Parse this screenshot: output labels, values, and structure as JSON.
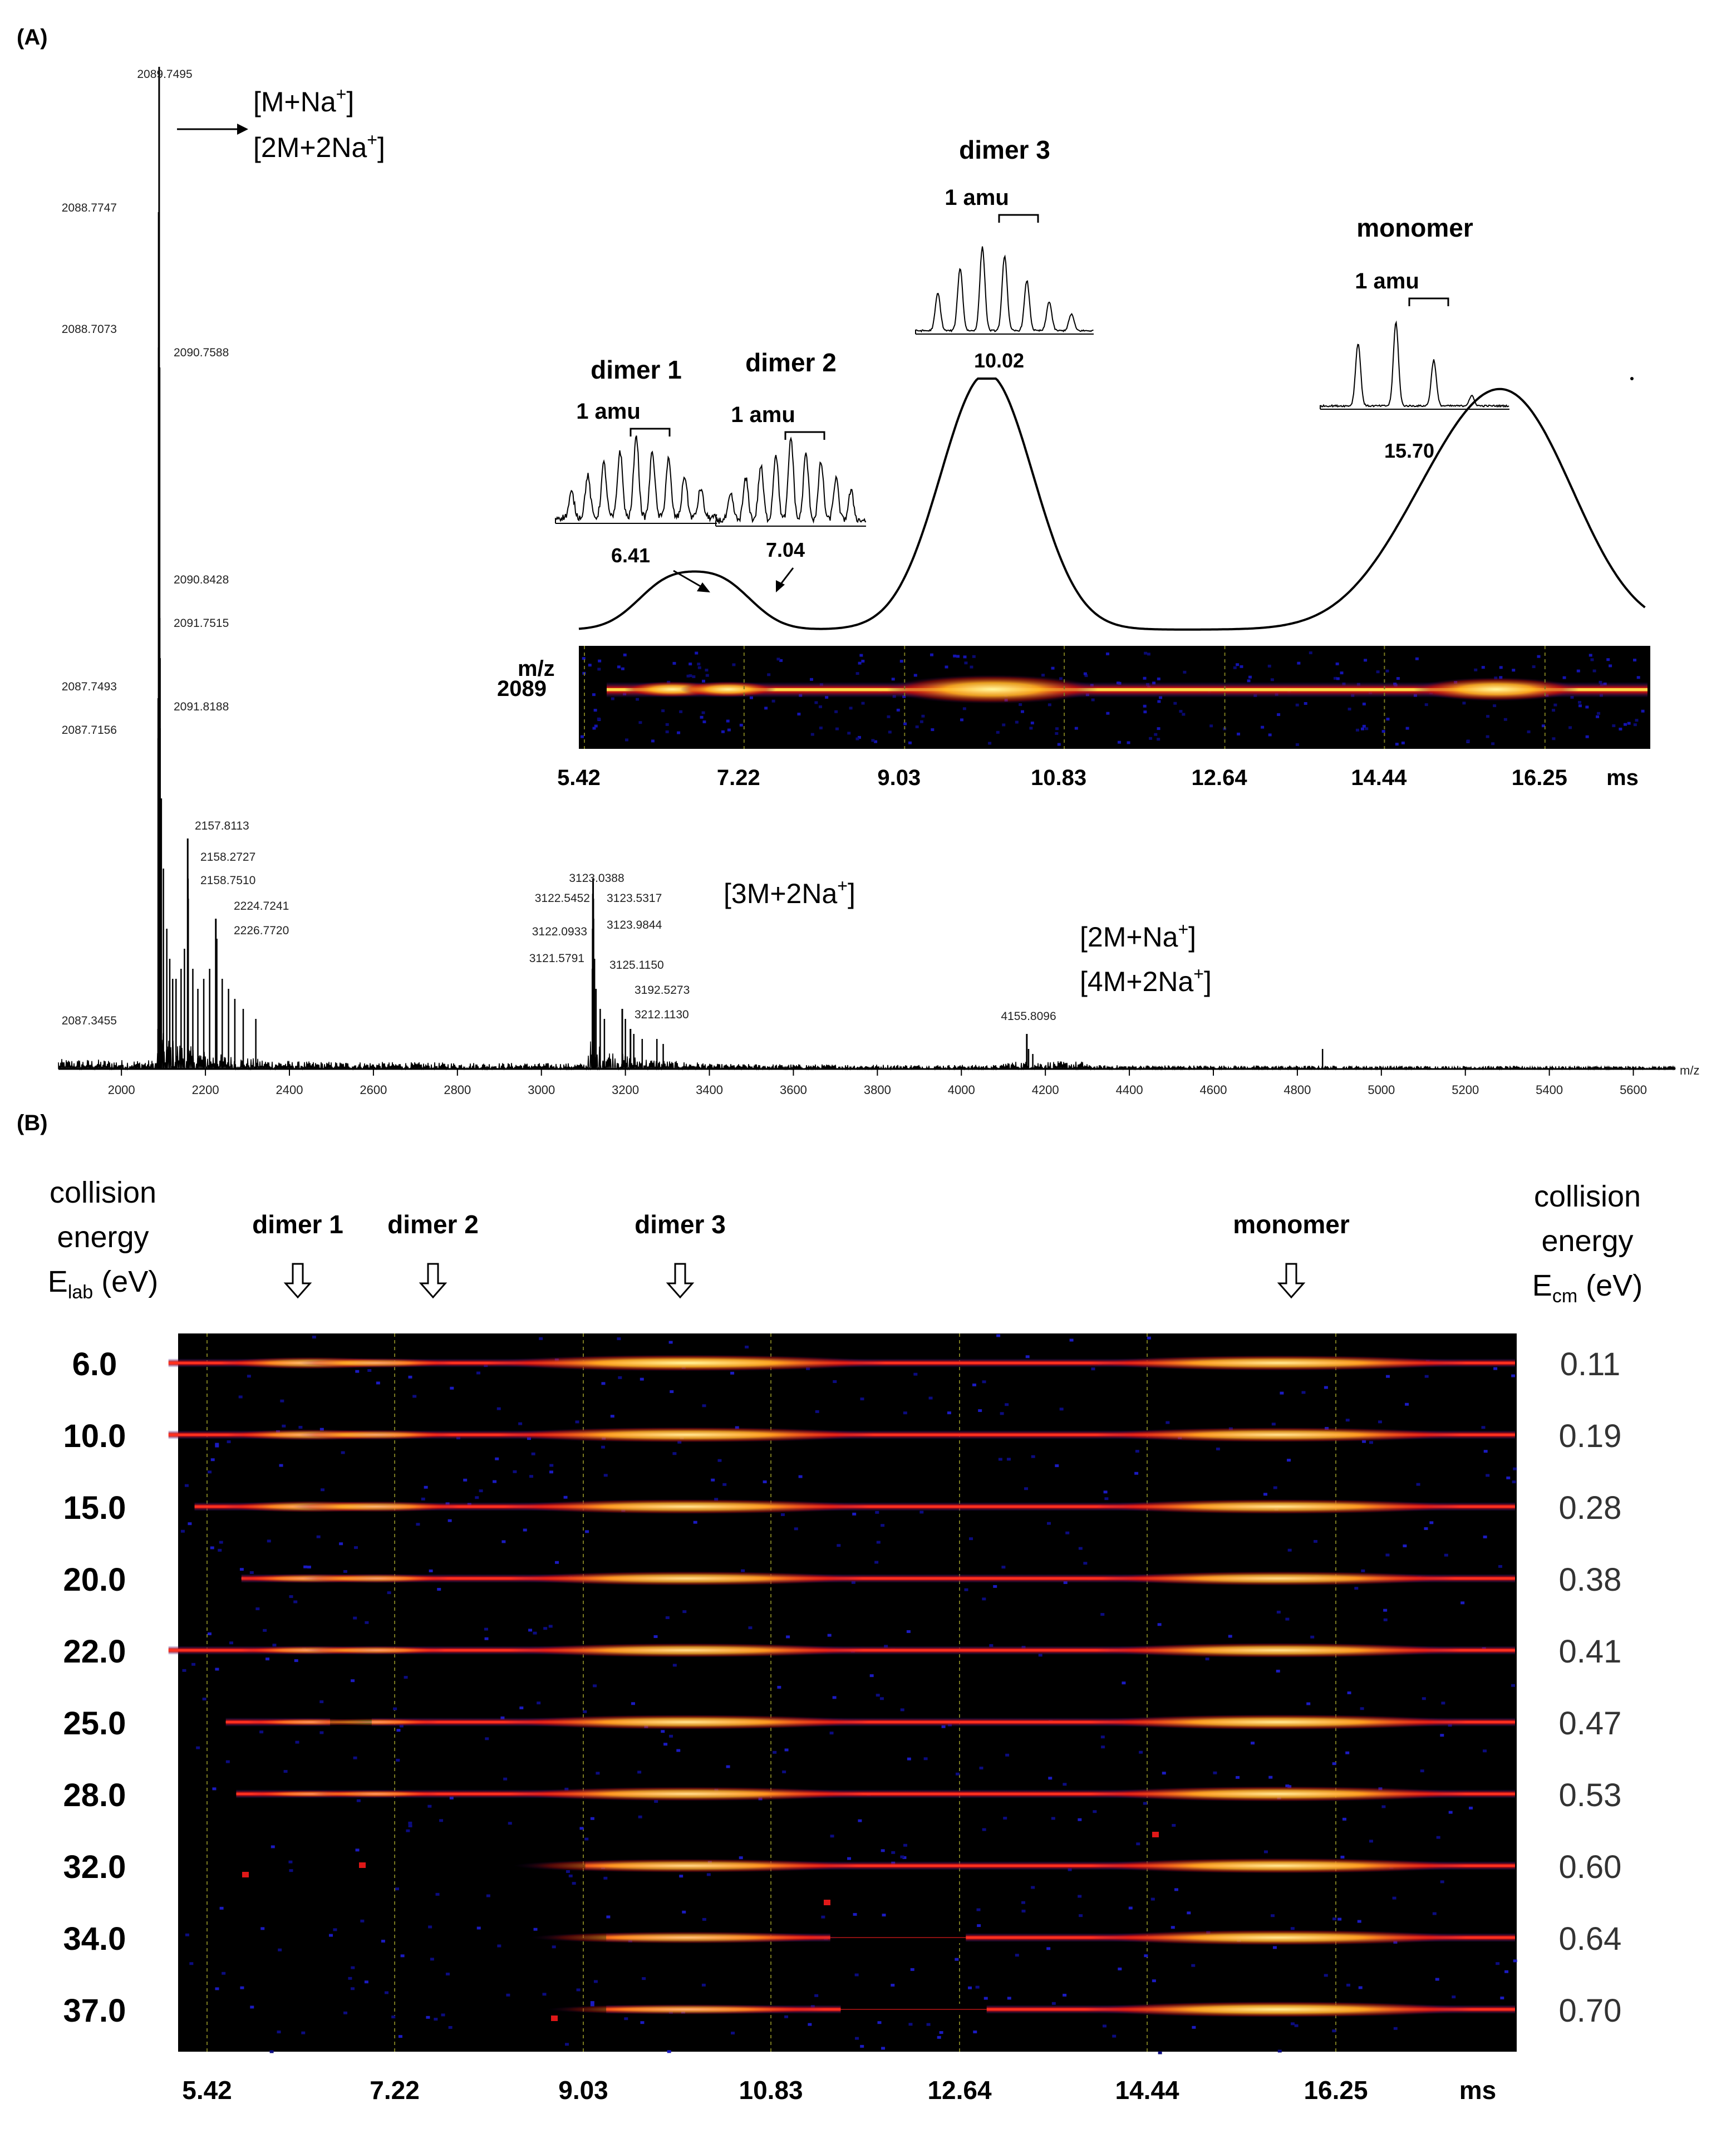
{
  "panels": {
    "a_label": "(A)",
    "b_label": "(B)"
  },
  "chart_data": [
    {
      "type": "line",
      "panel": "A",
      "x_unit": "m/z",
      "xlim": [
        1850,
        5700
      ],
      "x_ticks": [
        2000,
        2200,
        2400,
        2600,
        2800,
        3000,
        3200,
        3400,
        3600,
        3800,
        4000,
        4200,
        4400,
        4600,
        4800,
        5000,
        5200,
        5400,
        5600
      ],
      "y_relative_max": 1.0,
      "peaks": [
        {
          "mz": "2089.7495",
          "x": 2089.75,
          "y": 1.0
        },
        {
          "mz": "2088.7747",
          "x": 2088.77,
          "y": 0.855
        },
        {
          "mz": "2088.7073",
          "x": 2088.71,
          "y": 0.72
        },
        {
          "mz": "2090.7588",
          "x": 2090.76,
          "y": 0.7
        },
        {
          "mz": "2090.8428",
          "x": 2090.84,
          "y": 0.45
        },
        {
          "mz": "2091.7515",
          "x": 2091.75,
          "y": 0.41
        },
        {
          "mz": "2087.7493",
          "x": 2087.75,
          "y": 0.37
        },
        {
          "mz": "2091.8188",
          "x": 2091.82,
          "y": 0.34
        },
        {
          "mz": "2087.7156",
          "x": 2087.72,
          "y": 0.33
        },
        {
          "mz": "2157.8113",
          "x": 2157.81,
          "y": 0.23
        },
        {
          "mz": "2158.2727",
          "x": 2158.27,
          "y": 0.19
        },
        {
          "mz": "2158.7510",
          "x": 2158.75,
          "y": 0.17
        },
        {
          "mz": "2224.7241",
          "x": 2224.72,
          "y": 0.15
        },
        {
          "mz": "2226.7720",
          "x": 2226.77,
          "y": 0.13
        },
        {
          "mz": "2087.3455",
          "x": 2087.35,
          "y": 0.04
        },
        {
          "mz": "3123.0388",
          "x": 3123.04,
          "y": 0.19
        },
        {
          "mz": "3122.5452",
          "x": 3122.55,
          "y": 0.175
        },
        {
          "mz": "3123.5317",
          "x": 3123.53,
          "y": 0.17
        },
        {
          "mz": "3123.9844",
          "x": 3123.98,
          "y": 0.15
        },
        {
          "mz": "3122.0933",
          "x": 3122.09,
          "y": 0.14
        },
        {
          "mz": "3121.5791",
          "x": 3121.58,
          "y": 0.1
        },
        {
          "mz": "3125.1150",
          "x": 3125.12,
          "y": 0.09
        },
        {
          "mz": "3192.5273",
          "x": 3192.53,
          "y": 0.06
        },
        {
          "mz": "3212.1130",
          "x": 3212.11,
          "y": 0.04
        },
        {
          "mz": "4155.8096",
          "x": 4155.81,
          "y": 0.035
        }
      ],
      "annotations": {
        "ion_1a": "[M+Na",
        "ion_1a_sup": "+",
        "ion_1a_end": "]",
        "ion_1b": "[2M+2Na",
        "ion_1b_sup": "+",
        "ion_1b_end": "]",
        "ion_2": "[3M+2Na",
        "ion_2_sup": "+",
        "ion_2_end": "]",
        "ion_3a": "[2M+Na",
        "ion_3a_sup": "+",
        "ion_3a_end": "]",
        "ion_3b": "[4M+2Na",
        "ion_3b_sup": "+",
        "ion_3b_end": "]"
      }
    },
    {
      "type": "line",
      "panel": "A-inset",
      "x_unit": "ms",
      "x_ticks_labels": [
        "5.42",
        "7.22",
        "9.03",
        "10.83",
        "12.64",
        "14.44",
        "16.25",
        "ms"
      ],
      "x_ticks": [
        5.42,
        7.22,
        9.03,
        10.83,
        12.64,
        14.44,
        16.25
      ],
      "xlim": [
        5.42,
        17.5
      ],
      "peaks": [
        {
          "label": "dimer 1",
          "arrival_time": "6.41",
          "x": 6.41,
          "height": 0.17
        },
        {
          "label": "dimer 2",
          "arrival_time": "7.04",
          "x": 7.04,
          "height": 0.17
        },
        {
          "label": "dimer 3",
          "arrival_time": "10.02",
          "x": 10.02,
          "height": 1.0
        },
        {
          "label": "monomer",
          "arrival_time": "15.70",
          "x": 15.7,
          "height": 0.67
        }
      ],
      "amu_label": "1 amu",
      "heatmap_ylabel_1": "m/z",
      "heatmap_ylabel_2": "2089"
    },
    {
      "type": "heatmap",
      "panel": "B",
      "x_unit": "ms",
      "x_ticks_labels": [
        "5.42",
        "7.22",
        "9.03",
        "10.83",
        "12.64",
        "14.44",
        "16.25",
        "ms"
      ],
      "x_ticks": [
        5.42,
        7.22,
        9.03,
        10.83,
        12.64,
        14.44,
        16.25
      ],
      "xlim": [
        5.0,
        17.8
      ],
      "species": [
        {
          "label": "dimer 1",
          "x": 6.41
        },
        {
          "label": "dimer 2",
          "x": 7.04
        },
        {
          "label": "dimer 3",
          "x": 10.02
        },
        {
          "label": "monomer",
          "x": 15.7
        }
      ],
      "rows": [
        {
          "elab": "6.0",
          "ecm": "0.11",
          "start": 5.05,
          "mid_gap": [],
          "intensity": [
            0.6,
            0.4,
            1.0,
            0.9
          ]
        },
        {
          "elab": "10.0",
          "ecm": "0.19",
          "start": 5.05,
          "mid_gap": [],
          "intensity": [
            0.5,
            0.4,
            0.9,
            0.85
          ]
        },
        {
          "elab": "15.0",
          "ecm": "0.28",
          "start": 5.3,
          "mid_gap": [],
          "intensity": [
            0.55,
            0.5,
            0.85,
            0.85
          ]
        },
        {
          "elab": "20.0",
          "ecm": "0.38",
          "start": 5.75,
          "mid_gap": [],
          "intensity": [
            0.35,
            0.35,
            0.8,
            0.8
          ]
        },
        {
          "elab": "22.0",
          "ecm": "0.41",
          "start": 5.05,
          "mid_gap": [],
          "intensity": [
            0.3,
            0.3,
            0.8,
            0.85
          ]
        },
        {
          "elab": "25.0",
          "ecm": "0.47",
          "start": 5.6,
          "mid_gap": [
            6.6,
            7.0
          ],
          "intensity": [
            0.2,
            0.2,
            0.85,
            0.9
          ]
        },
        {
          "elab": "28.0",
          "ecm": "0.53",
          "start": 5.7,
          "mid_gap": [],
          "intensity": [
            0.15,
            0.2,
            0.8,
            0.9
          ]
        },
        {
          "elab": "32.0",
          "ecm": "0.60",
          "start": 9.05,
          "mid_gap": [],
          "intensity": [
            0.0,
            0.0,
            0.75,
            0.9
          ]
        },
        {
          "elab": "34.0",
          "ecm": "0.64",
          "start": 9.25,
          "mid_gap": [
            11.4,
            12.7
          ],
          "intensity": [
            0.0,
            0.0,
            0.6,
            0.9
          ]
        },
        {
          "elab": "37.0",
          "ecm": "0.70",
          "start": 9.25,
          "mid_gap": [
            11.5,
            12.9
          ],
          "intensity": [
            0.0,
            0.0,
            0.45,
            0.95
          ]
        }
      ],
      "left_title_1": "collision",
      "left_title_2": "energy",
      "left_title_3": "E",
      "left_title_3_sub": "lab",
      "left_title_3_end": " (eV)",
      "right_title_1": "collision",
      "right_title_2": "energy",
      "right_title_3": "E",
      "right_title_3_sub": "cm",
      "right_title_3_end": " (eV)"
    }
  ]
}
